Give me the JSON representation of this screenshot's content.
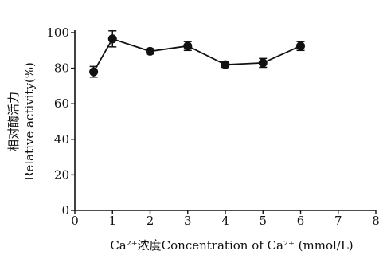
{
  "chart_data": {
    "type": "line",
    "title": "",
    "xlabel": "Ca²⁺浓度Concentration of Ca²⁺ (mmol/L)",
    "ylabel_cn": "相对酶活力",
    "ylabel_en": "Relative activity(%)",
    "xlim": [
      0,
      8
    ],
    "ylim": [
      0,
      100
    ],
    "x_ticks": [
      0,
      1,
      2,
      3,
      4,
      5,
      6,
      7,
      8
    ],
    "y_ticks": [
      0,
      20,
      40,
      60,
      80,
      100
    ],
    "grid": false,
    "legend": "none",
    "series": [
      {
        "x": [
          0.5,
          1,
          2,
          3,
          4,
          5,
          6
        ],
        "y": [
          78,
          96.5,
          89.5,
          92.5,
          82,
          83,
          92.5
        ],
        "error": [
          3,
          4.5,
          1.5,
          2.5,
          1.5,
          2.5,
          2.5
        ]
      }
    ],
    "colors": {
      "line": "#111111",
      "marker": "#111111"
    }
  }
}
